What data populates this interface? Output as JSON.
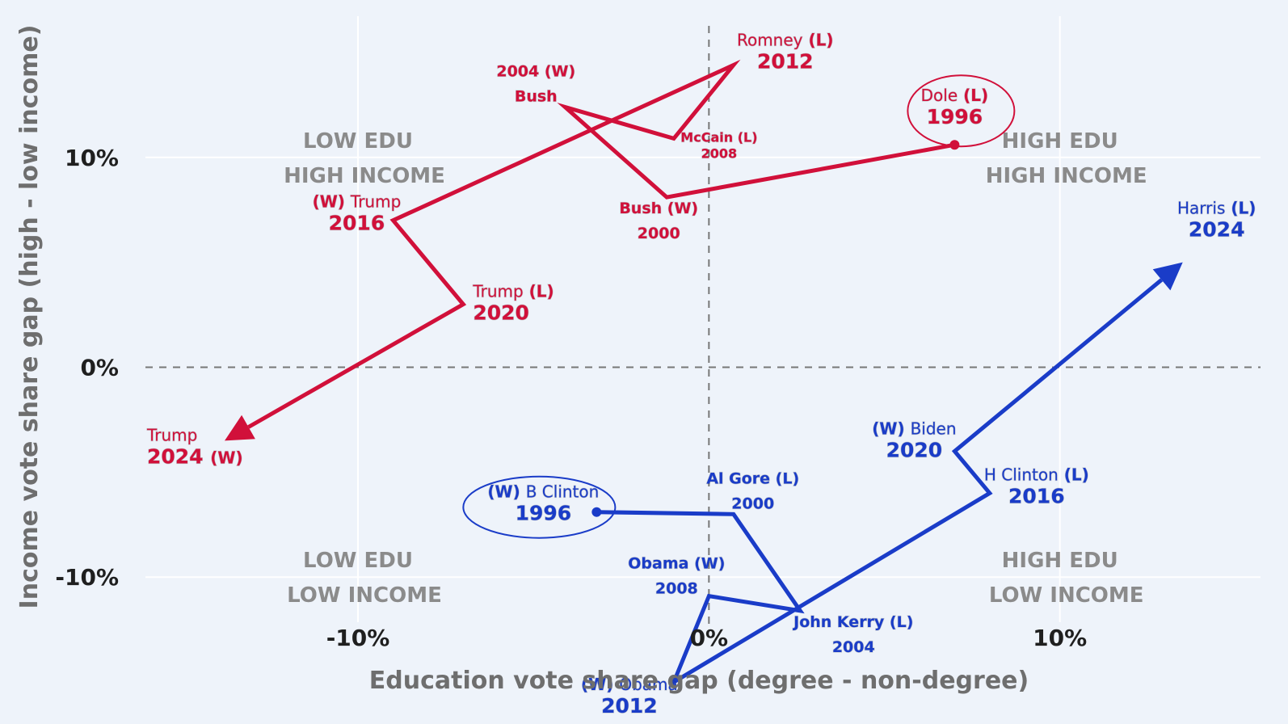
{
  "chart_data": {
    "type": "line",
    "xlabel": "Education vote share gap (degree - non-degree)",
    "ylabel": "Income vote share gap (high - low income)",
    "xlim": [
      -20.2,
      16.5
    ],
    "ylim": [
      -17.0,
      17.5
    ],
    "x_ticks": [
      {
        "value": -10,
        "label": "-10%"
      },
      {
        "value": 0,
        "label": "0%"
      },
      {
        "value": 10,
        "label": "10%"
      }
    ],
    "y_ticks": [
      {
        "value": 10,
        "label": "10%"
      },
      {
        "value": 0,
        "label": "0%"
      },
      {
        "value": -10,
        "label": "-10%"
      }
    ],
    "grid": true,
    "zero_lines": "dashed",
    "quadrants": [
      {
        "line1": "LOW EDU",
        "line2": "HIGH INCOME",
        "x": -10,
        "y": 10
      },
      {
        "line1": "HIGH EDU",
        "line2": "HIGH INCOME",
        "x": 10,
        "y": 10
      },
      {
        "line1": "LOW EDU",
        "line2": "LOW INCOME",
        "x": -10,
        "y": -10
      },
      {
        "line1": "HIGH EDU",
        "line2": "LOW INCOME",
        "x": 10,
        "y": -10
      }
    ],
    "colors": {
      "republican": "#d1103a",
      "democrat": "#1a3cc8"
    },
    "series": [
      {
        "color": "#d1103a",
        "start_marker": "dot",
        "end_marker": "arrow",
        "circled_year": "1996",
        "points": [
          {
            "year": 1996,
            "candidate": "Dole",
            "result": "L",
            "x": 7.0,
            "y": 10.6
          },
          {
            "year": 2000,
            "candidate": "Bush",
            "result": "W",
            "x": -1.2,
            "y": 8.1
          },
          {
            "year": 2004,
            "candidate": "Bush",
            "result": "W",
            "x": -4.1,
            "y": 12.4
          },
          {
            "year": 2008,
            "candidate": "McCain",
            "result": "L",
            "x": -1.0,
            "y": 10.9
          },
          {
            "year": 2012,
            "candidate": "Romney",
            "result": "L",
            "x": 0.7,
            "y": 14.4
          },
          {
            "year": 2016,
            "candidate": "Trump",
            "result": "W",
            "x": -9.0,
            "y": 7.0
          },
          {
            "year": 2020,
            "candidate": "Trump",
            "result": "L",
            "x": -7.0,
            "y": 3.0
          },
          {
            "year": 2024,
            "candidate": "Trump",
            "result": "W",
            "x": -13.8,
            "y": -3.5
          }
        ]
      },
      {
        "color": "#1a3cc8",
        "start_marker": "dot",
        "end_marker": "arrow",
        "circled_year": "1996",
        "points": [
          {
            "year": 1996,
            "candidate": "B Clinton",
            "result": "W",
            "x": -3.2,
            "y": -6.9
          },
          {
            "year": 2000,
            "candidate": "Al Gore",
            "result": "L",
            "x": 0.7,
            "y": -7.0
          },
          {
            "year": 2004,
            "candidate": "John Kerry",
            "result": "L",
            "x": 2.6,
            "y": -11.6
          },
          {
            "year": 2008,
            "candidate": "Obama",
            "result": "W",
            "x": 0.0,
            "y": -10.9
          },
          {
            "year": 2012,
            "candidate": "Obama",
            "result": "W",
            "x": -1.0,
            "y": -15.0
          },
          {
            "year": 2016,
            "candidate": "H Clinton",
            "result": "L",
            "x": 8.0,
            "y": -6.0
          },
          {
            "year": 2020,
            "candidate": "Biden",
            "result": "W",
            "x": 7.0,
            "y": -4.0
          },
          {
            "year": 2024,
            "candidate": "Harris",
            "result": "L",
            "x": 13.5,
            "y": 5.0
          }
        ]
      }
    ],
    "annotations": [
      {
        "series": 0,
        "year": 1996,
        "l1": "Dole",
        "l1w": "(L)",
        "l2": "1996",
        "style": "big",
        "dx": 0,
        "dy": -54,
        "anchor": "middle"
      },
      {
        "series": 0,
        "year": 2000,
        "l1": "Bush (W)",
        "l2": "2000",
        "style": "small",
        "dx": -10,
        "dy": 20,
        "anchor": "middle"
      },
      {
        "series": 0,
        "year": 2004,
        "l1": "2004 (W)",
        "l2": "Bush",
        "style": "small",
        "dx": -36,
        "dy": -38,
        "anchor": "middle"
      },
      {
        "series": 0,
        "year": 2008,
        "l1": "McCain (L)",
        "l2": "2008",
        "style": "tiny",
        "dx": 56,
        "dy": 4,
        "anchor": "middle"
      },
      {
        "series": 0,
        "year": 2012,
        "l1": "Romney",
        "l1w": "(L)",
        "l2": "2012",
        "style": "big",
        "dx": 64,
        "dy": -24,
        "anchor": "middle"
      },
      {
        "series": 0,
        "year": 2016,
        "l1w_pre": "(W)",
        "l1": "Trump",
        "l2": "2016",
        "style": "big",
        "dx": -45,
        "dy": -16,
        "anchor": "middle"
      },
      {
        "series": 0,
        "year": 2020,
        "l1": "Trump",
        "l1w": "(L)",
        "l2": "2020",
        "style": "big",
        "dx": 12,
        "dy": -9,
        "anchor": "start"
      },
      {
        "series": 0,
        "year": 2024,
        "l1": "Trump",
        "l2": "2024",
        "l2w": "(W)",
        "style": "big",
        "dx": -96,
        "dy": 0,
        "anchor": "start"
      },
      {
        "series": 1,
        "year": 1996,
        "l1w_pre": "(W)",
        "l1": "B Clinton",
        "l2": "1996",
        "style": "big",
        "dx": -66,
        "dy": -18,
        "anchor": "middle"
      },
      {
        "series": 1,
        "year": 2000,
        "l1": "Al Gore (L)",
        "l2": "2000",
        "style": "small",
        "dx": 24,
        "dy": -38,
        "anchor": "middle"
      },
      {
        "series": 1,
        "year": 2004,
        "l1": "John Kerry (L)",
        "l2": "2004",
        "style": "small",
        "dx": 66,
        "dy": 20,
        "anchor": "middle"
      },
      {
        "series": 1,
        "year": 2008,
        "l1": "Obama (W)",
        "l2": "2008",
        "style": "small",
        "dx": -40,
        "dy": -34,
        "anchor": "middle"
      },
      {
        "series": 1,
        "year": 2012,
        "l1w_pre": "(W)",
        "l1": "Obama",
        "l2": "2012",
        "style": "big",
        "dx": -55,
        "dy": 10,
        "anchor": "middle"
      },
      {
        "series": 1,
        "year": 2016,
        "l1": "H Clinton",
        "l1w": "(L)",
        "l2": "2016",
        "style": "big",
        "dx": 58,
        "dy": -16,
        "anchor": "middle"
      },
      {
        "series": 1,
        "year": 2020,
        "l1w_pre": "(W)",
        "l1": "Biden",
        "l2": "2020",
        "style": "big",
        "dx": -50,
        "dy": -21,
        "anchor": "middle"
      },
      {
        "series": 1,
        "year": 2024,
        "l1": "Harris",
        "l1w": "(L)",
        "l2": "2024",
        "style": "big",
        "dx": 42,
        "dy": -60,
        "anchor": "middle"
      }
    ]
  }
}
